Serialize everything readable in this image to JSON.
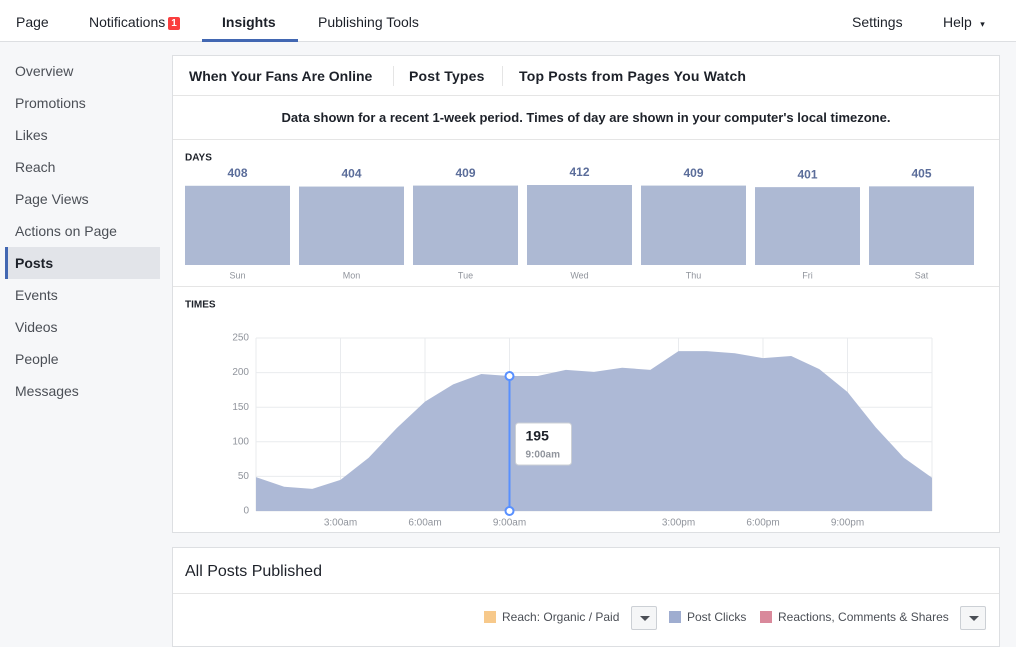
{
  "nav": {
    "items": [
      "Page",
      "Notifications",
      "Insights",
      "Publishing Tools"
    ],
    "badge": "1",
    "active": 2,
    "right": [
      "Settings",
      "Help"
    ]
  },
  "sidebar": {
    "items": [
      "Overview",
      "Promotions",
      "Likes",
      "Reach",
      "Page Views",
      "Actions on Page",
      "Posts",
      "Events",
      "Videos",
      "People",
      "Messages"
    ],
    "active": 6
  },
  "tabs": [
    "When Your Fans Are Online",
    "Post Types",
    "Top Posts from Pages You Watch"
  ],
  "notice": "Data shown for a recent 1-week period. Times of day are shown in your computer's local timezone.",
  "chart_data": [
    {
      "type": "bar",
      "title": "DAYS",
      "categories": [
        "Sun",
        "Mon",
        "Tue",
        "Wed",
        "Thu",
        "Fri",
        "Sat"
      ],
      "values": [
        408,
        404,
        409,
        412,
        409,
        401,
        405
      ],
      "color": "#adb9d3",
      "ylim": [
        0,
        412
      ]
    },
    {
      "type": "area",
      "title": "TIMES",
      "x": [
        0,
        1,
        2,
        3,
        4,
        5,
        6,
        7,
        8,
        9,
        10,
        11,
        12,
        13,
        14,
        15,
        16,
        17,
        18,
        19,
        20,
        21,
        22,
        23,
        24
      ],
      "values": [
        49,
        35,
        32,
        45,
        77,
        120,
        158,
        183,
        198,
        195,
        195,
        204,
        201,
        207,
        204,
        231,
        231,
        228,
        221,
        224,
        205,
        172,
        121,
        77,
        48
      ],
      "color": "#adb9d6",
      "xlim": [
        0,
        24
      ],
      "xticks": [
        {
          "value": 3,
          "label": "3:00am"
        },
        {
          "value": 6,
          "label": "6:00am"
        },
        {
          "value": 9,
          "label": "9:00am"
        },
        {
          "value": 15,
          "label": "3:00pm"
        },
        {
          "value": 18,
          "label": "6:00pm"
        },
        {
          "value": 21,
          "label": "9:00pm"
        }
      ],
      "ylim": [
        0,
        250
      ],
      "yticks": [
        0,
        50,
        100,
        150,
        200,
        250
      ],
      "grid": true,
      "tooltip": {
        "x": 9,
        "label": "9:00am"
      }
    }
  ],
  "posts": {
    "title": "All Posts Published",
    "legend": [
      {
        "name": "Reach: Organic / Paid",
        "color": "#f7c98b"
      },
      {
        "name": "Post Clicks",
        "color": "#9fadd0"
      },
      {
        "name": "Reactions, Comments & Shares",
        "color": "#d9899b"
      }
    ]
  }
}
